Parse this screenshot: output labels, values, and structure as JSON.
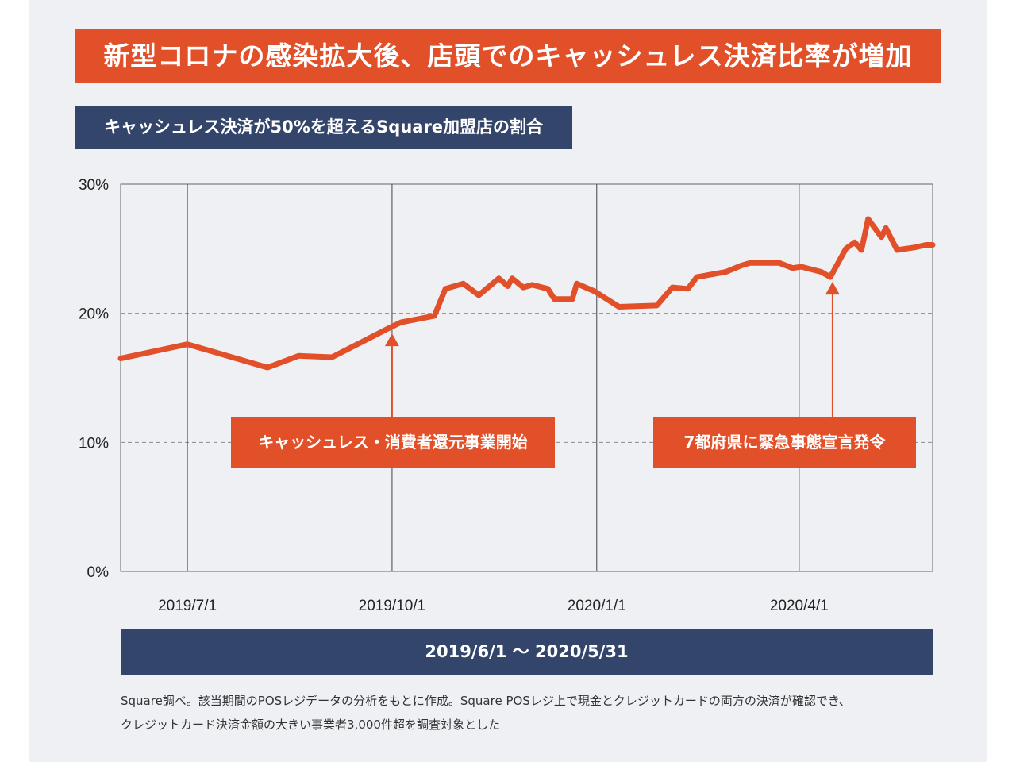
{
  "header": {
    "title": "新型コロナの感染拡大後、店頭でのキャッシュレス決済比率が増加",
    "subtitle": "キャッシュレス決済が50%を超えるSquare加盟店の割合"
  },
  "colors": {
    "accent": "#e2502a",
    "navy": "#33456a",
    "panel": "#eef0f4"
  },
  "chart_data": {
    "type": "line",
    "title": "キャッシュレス決済が50%を超えるSquare加盟店の割合",
    "xlabel": "",
    "ylabel": "",
    "x_range": [
      "2019-06-01",
      "2020-05-31"
    ],
    "ylim": [
      0,
      30
    ],
    "y_ticks": [
      {
        "value": 30,
        "label": "30%"
      },
      {
        "value": 20,
        "label": "20%"
      },
      {
        "value": 10,
        "label": "10%"
      },
      {
        "value": 0,
        "label": "0%"
      }
    ],
    "x_ticks": [
      {
        "date": "2019-07-01",
        "label": "2019/7/1"
      },
      {
        "date": "2019-10-01",
        "label": "2019/10/1"
      },
      {
        "date": "2020-01-01",
        "label": "2020/1/1"
      },
      {
        "date": "2020-04-01",
        "label": "2020/4/1"
      }
    ],
    "grid": {
      "vertical": true,
      "horizontal_dashed": true
    },
    "series": [
      {
        "values": [
          [
            "2019-06-01",
            16.5
          ],
          [
            "2019-07-01",
            17.6
          ],
          [
            "2019-08-06",
            15.8
          ],
          [
            "2019-08-20",
            16.7
          ],
          [
            "2019-09-04",
            16.6
          ],
          [
            "2019-09-29",
            18.8
          ],
          [
            "2019-10-05",
            19.3
          ],
          [
            "2019-10-20",
            19.8
          ],
          [
            "2019-10-25",
            21.9
          ],
          [
            "2019-11-02",
            22.3
          ],
          [
            "2019-11-09",
            21.4
          ],
          [
            "2019-11-18",
            22.7
          ],
          [
            "2019-11-22",
            22.1
          ],
          [
            "2019-11-24",
            22.7
          ],
          [
            "2019-11-29",
            22.0
          ],
          [
            "2019-12-03",
            22.2
          ],
          [
            "2019-12-10",
            21.9
          ],
          [
            "2019-12-13",
            21.1
          ],
          [
            "2019-12-21",
            21.1
          ],
          [
            "2019-12-23",
            22.3
          ],
          [
            "2019-12-31",
            21.7
          ],
          [
            "2020-01-11",
            20.5
          ],
          [
            "2020-01-28",
            20.6
          ],
          [
            "2020-02-04",
            22.0
          ],
          [
            "2020-02-11",
            21.9
          ],
          [
            "2020-02-15",
            22.8
          ],
          [
            "2020-02-28",
            23.2
          ],
          [
            "2020-03-06",
            23.7
          ],
          [
            "2020-03-10",
            23.9
          ],
          [
            "2020-03-23",
            23.9
          ],
          [
            "2020-03-29",
            23.5
          ],
          [
            "2020-04-02",
            23.6
          ],
          [
            "2020-04-11",
            23.2
          ],
          [
            "2020-04-15",
            22.8
          ],
          [
            "2020-04-22",
            25.0
          ],
          [
            "2020-04-26",
            25.5
          ],
          [
            "2020-04-29",
            24.9
          ],
          [
            "2020-05-02",
            27.3
          ],
          [
            "2020-05-08",
            25.9
          ],
          [
            "2020-05-10",
            26.6
          ],
          [
            "2020-05-15",
            24.9
          ],
          [
            "2020-05-23",
            25.1
          ],
          [
            "2020-05-28",
            25.3
          ],
          [
            "2020-05-31",
            25.3
          ]
        ]
      }
    ],
    "annotations": [
      {
        "text": "キャッシュレス・消費者還元事業開始",
        "date": "2019-10-01",
        "y": 18.8
      },
      {
        "text": "7都府県に緊急事態宣言発令",
        "date": "2020-04-16",
        "y": 22.8
      }
    ]
  },
  "date_range_label": "2019/6/1 〜 2020/5/31",
  "footnote": {
    "line1": "Square調べ。該当期間のPOSレジデータの分析をもとに作成。Square POSレジ上で現金とクレジットカードの両方の決済が確認でき、",
    "line2": "クレジットカード決済金額の大きい事業者3,000件超を調査対象とした"
  }
}
